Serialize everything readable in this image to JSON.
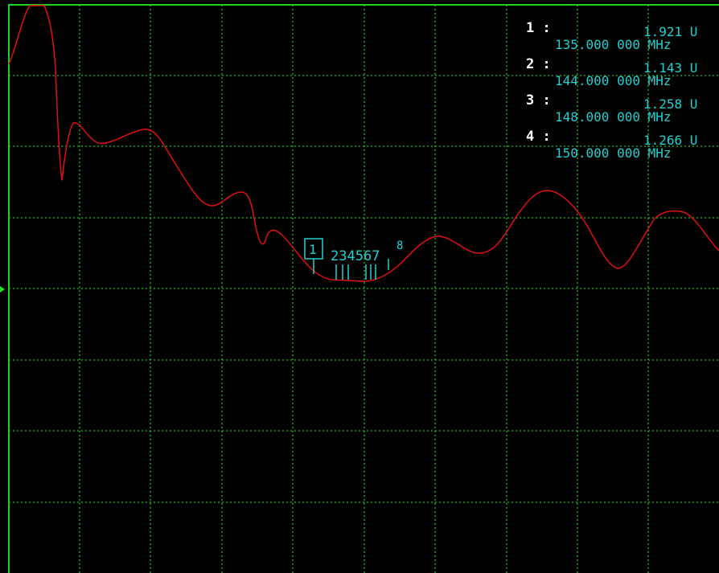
{
  "display": {
    "background": "#000000",
    "grid_color": "#1fc01f",
    "frame_color": "#1fd01f",
    "trace_color": "#e01010",
    "marker_color": "#20d0d0",
    "reference_arrow_color": "#20e020"
  },
  "markers": {
    "active_marker_label": "1",
    "group_labels": "234567",
    "superscript_label": "8"
  },
  "readouts": [
    {
      "index": "1 :",
      "value": "1.921 U",
      "frequency": "135.000 000 MHz"
    },
    {
      "index": "2 :",
      "value": "1.143 U",
      "frequency": "144.000 000 MHz"
    },
    {
      "index": "3 :",
      "value": "1.258 U",
      "frequency": "148.000 000 MHz"
    },
    {
      "index": "4 :",
      "value": "1.266 U",
      "frequency": "150.000 000 MHz"
    }
  ]
}
